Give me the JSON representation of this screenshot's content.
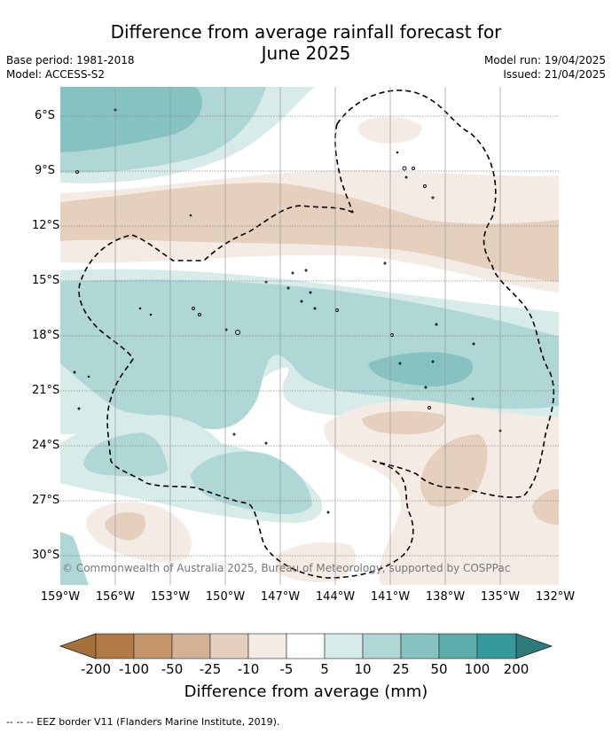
{
  "header": {
    "title_line1": "Difference from average rainfall forecast for",
    "title_line2": "June 2025",
    "base_period": "Base period: 1981-2018",
    "model": "Model: ACCESS-S2",
    "model_run": "Model run: 19/04/2025",
    "issued": "Issued: 21/04/2025"
  },
  "axes": {
    "lat_labels": [
      "6°S",
      "9°S",
      "12°S",
      "15°S",
      "18°S",
      "21°S",
      "24°S",
      "27°S",
      "30°S"
    ],
    "lon_labels": [
      "159°W",
      "156°W",
      "153°W",
      "150°W",
      "147°W",
      "144°W",
      "141°W",
      "138°W",
      "135°W",
      "132°W"
    ]
  },
  "map": {
    "copyright": "© Commonwealth of Australia 2025, Bureau of Meteorology, supported by COSPPac"
  },
  "colorbar": {
    "title": "Difference from average (mm)",
    "tick_labels": [
      "-200",
      "-100",
      "-50",
      "-25",
      "-10",
      "-5",
      "5",
      "10",
      "25",
      "50",
      "100",
      "200"
    ],
    "colors": [
      "#a6703a",
      "#b27a44",
      "#c4956a",
      "#d3b195",
      "#e4d0bd",
      "#f4ebe4",
      "#ffffff",
      "#d7ebe9",
      "#aed7d5",
      "#86c2c0",
      "#5cadac",
      "#34999a",
      "#2c7a7a"
    ]
  },
  "legend": {
    "eez_symbol": "--  --  --",
    "eez_text": "EEZ border V11 (Flanders Marine Institute, 2019)."
  }
}
